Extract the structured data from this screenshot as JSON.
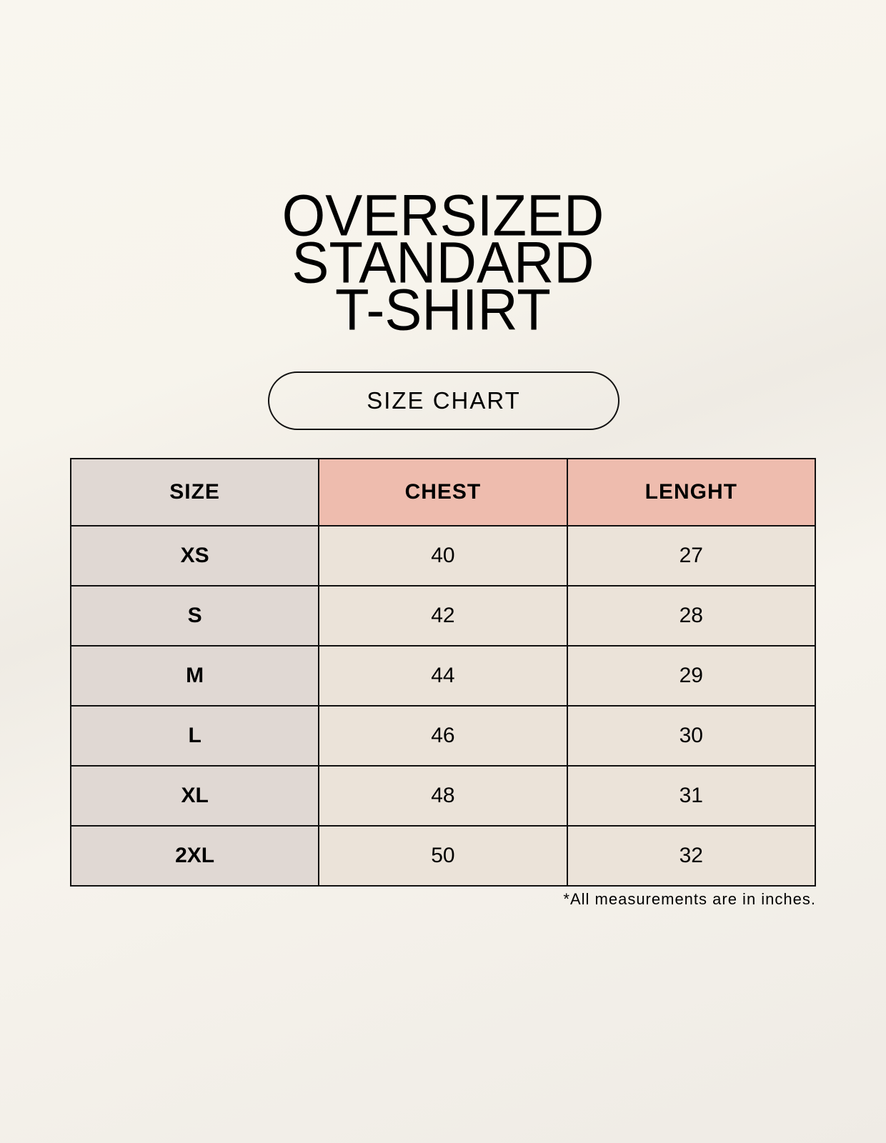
{
  "title_lines": [
    "OVERSIZED",
    "STANDARD",
    "T-SHIRT"
  ],
  "subtitle": "SIZE CHART",
  "table": {
    "headers": [
      "SIZE",
      "CHEST",
      "LENGHT"
    ],
    "rows": [
      [
        "XS",
        "40",
        "27"
      ],
      [
        "S",
        "42",
        "28"
      ],
      [
        "M",
        "44",
        "29"
      ],
      [
        "L",
        "46",
        "30"
      ],
      [
        "XL",
        "48",
        "31"
      ],
      [
        "2XL",
        "50",
        "32"
      ]
    ]
  },
  "footnote": "*All measurements are in inches.",
  "colors": {
    "size_column": "#e0d8d3",
    "header_accent": "#eebcae",
    "cell": "#ebe3d9"
  }
}
